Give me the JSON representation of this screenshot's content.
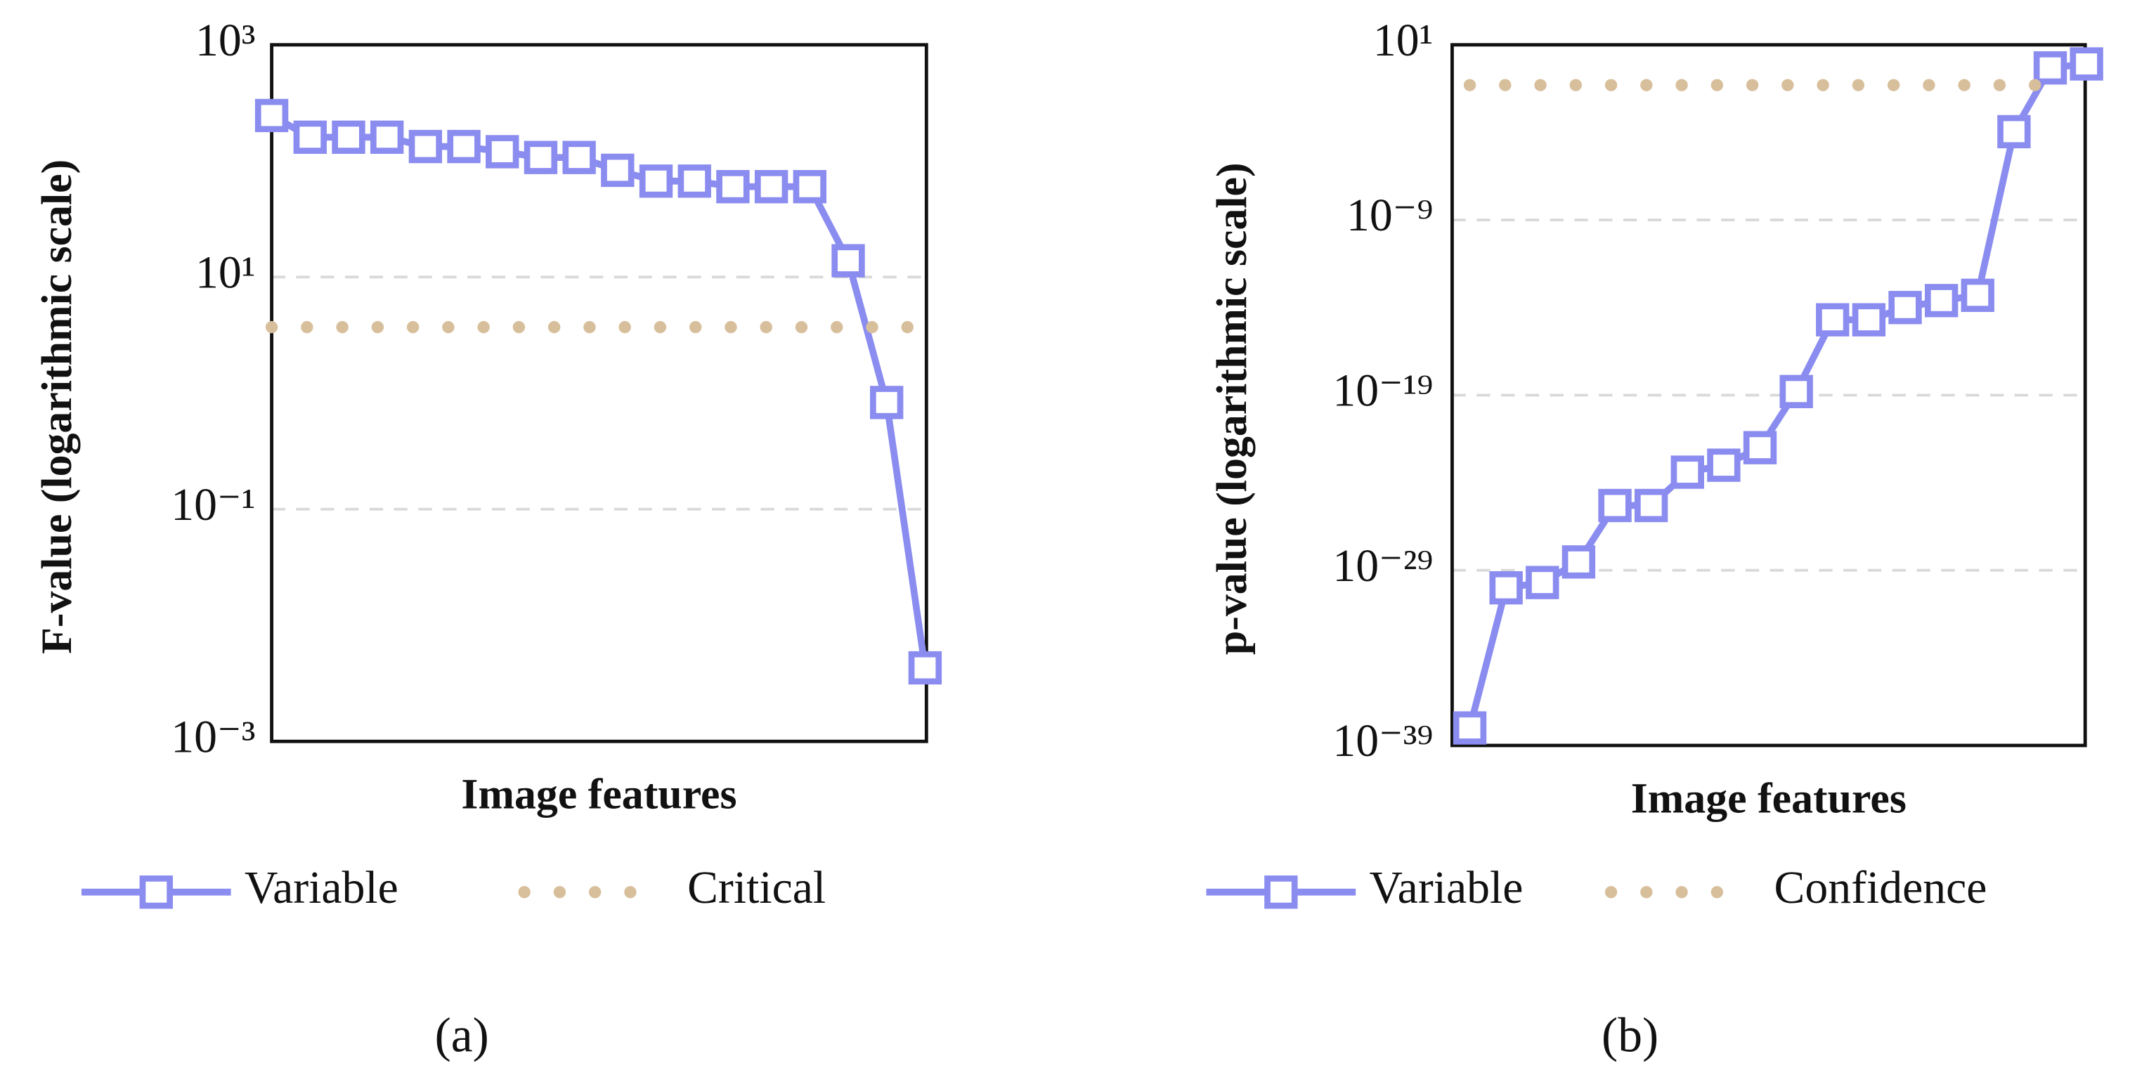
{
  "chart_data": [
    {
      "type": "line",
      "panel_label": "(a)",
      "y_label": "F-value (logarithmic scale)",
      "x_label": "Image features",
      "log_y": true,
      "grid": true,
      "ylim": [
        0.001,
        1000
      ],
      "yticks": [
        {
          "value": 0.001,
          "label": "10⁻³"
        },
        {
          "value": 0.1,
          "label": "10⁻¹"
        },
        {
          "value": 10,
          "label": "10¹"
        },
        {
          "value": 1000,
          "label": "10³"
        }
      ],
      "series": [
        {
          "name": "Variable",
          "color": "#8a8cf0",
          "marker": "square",
          "values": [
            246,
            160,
            160,
            160,
            133,
            133,
            120,
            107,
            107,
            83,
            67,
            67,
            60,
            60,
            60,
            13.8,
            0.83,
            0.0043
          ]
        },
        {
          "name": "Critical",
          "color": "#d8bf9c",
          "style": "dotted",
          "values": [
            3.7
          ]
        }
      ]
    },
    {
      "type": "line",
      "panel_label": "(b)",
      "y_label": "p-value (logarithmic scale)",
      "x_label": "Image features",
      "log_y": true,
      "grid": true,
      "ylim": [
        1e-39,
        10
      ],
      "yticks": [
        {
          "value": 1e-39,
          "label": "10⁻³⁹"
        },
        {
          "value": 1e-29,
          "label": "10⁻²⁹"
        },
        {
          "value": 1e-19,
          "label": "10⁻¹⁹"
        },
        {
          "value": 1e-09,
          "label": "10⁻⁹"
        },
        {
          "value": 10,
          "label": "10¹"
        }
      ],
      "series": [
        {
          "name": "Variable",
          "color": "#8a8cf0",
          "marker": "square",
          "values": [
            1e-38,
            1e-30,
            2e-30,
            3e-29,
            5e-26,
            5e-26,
            4e-24,
            1e-23,
            1e-22,
            1.6e-19,
            2e-15,
            2e-15,
            1e-14,
            2.5e-14,
            5e-14,
            0.00011,
            0.48,
            0.81
          ]
        },
        {
          "name": "Confidence",
          "color": "#d8bf9c",
          "style": "dotted",
          "values": [
            0.05
          ]
        }
      ]
    }
  ]
}
